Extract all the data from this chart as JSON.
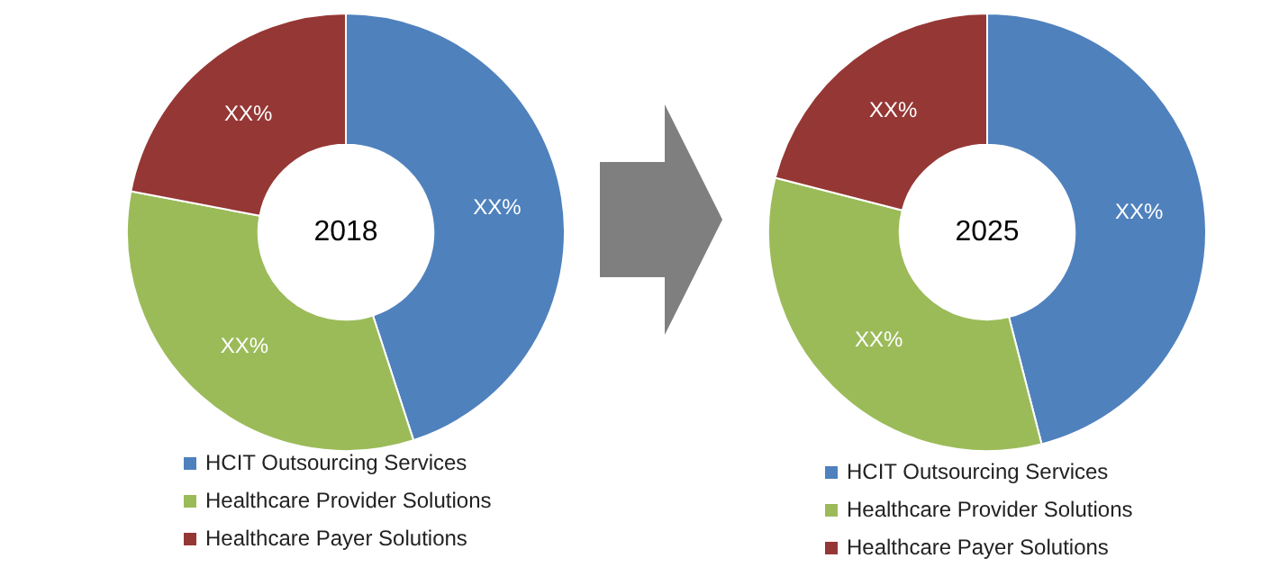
{
  "chart_data": [
    {
      "type": "donut",
      "title": "2018",
      "categories": [
        "HCIT Outsourcing Services",
        "Healthcare Provider Solutions",
        "Healthcare Payer Solutions"
      ],
      "values": [
        45,
        33,
        22
      ],
      "colors": [
        "#4f81bd",
        "#9bbb59",
        "#953735"
      ],
      "value_labels": [
        "XX%",
        "XX%",
        "XX%"
      ],
      "legend": "bottom"
    },
    {
      "type": "donut",
      "title": "2025",
      "categories": [
        "HCIT Outsourcing Services",
        "Healthcare Provider Solutions",
        "Healthcare Payer Solutions"
      ],
      "values": [
        46,
        33,
        21
      ],
      "colors": [
        "#4f81bd",
        "#9bbb59",
        "#953735"
      ],
      "value_labels": [
        "XX%",
        "XX%",
        "XX%"
      ],
      "legend": "bottom"
    }
  ]
}
